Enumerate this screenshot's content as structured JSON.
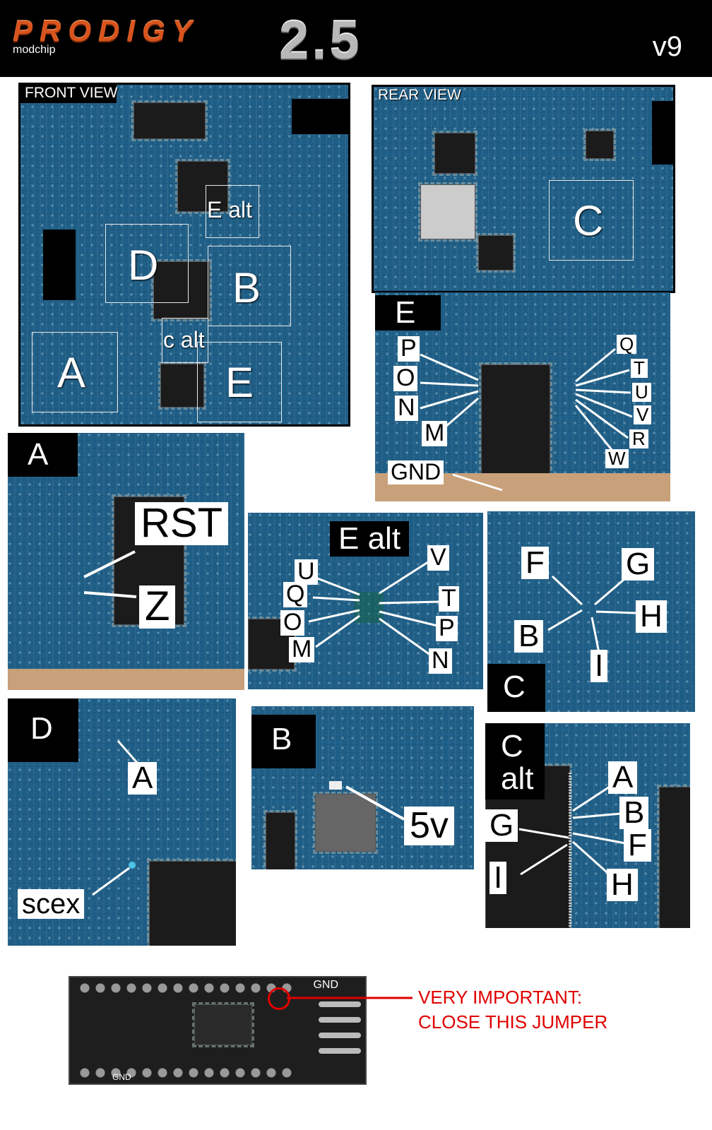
{
  "header": {
    "logo": "PRODIGY",
    "subtitle": "modchip",
    "version_big": "2.5",
    "version": "v9"
  },
  "front_view": {
    "title": "FRONT VIEW",
    "regions": [
      "E alt",
      "D",
      "B",
      "c alt",
      "A",
      "E"
    ]
  },
  "rear_view": {
    "title": "REAR VIEW",
    "regions": [
      "C"
    ]
  },
  "panel_E": {
    "tag": "E",
    "left_labels": [
      "P",
      "O",
      "N",
      "M"
    ],
    "right_labels": [
      "Q",
      "T",
      "U",
      "V",
      "R",
      "W"
    ],
    "ground": "GND"
  },
  "panel_A": {
    "tag": "A",
    "labels": [
      "RST",
      "Z"
    ]
  },
  "panel_E_alt": {
    "tag": "E alt",
    "left_labels": [
      "U",
      "Q",
      "O",
      "M"
    ],
    "right_labels": [
      "V",
      "T",
      "P",
      "N"
    ]
  },
  "panel_C": {
    "tag": "C",
    "labels": [
      "F",
      "G",
      "B",
      "H",
      "I"
    ]
  },
  "panel_D": {
    "tag": "D",
    "labels": [
      "A",
      "scex"
    ]
  },
  "panel_B": {
    "tag": "B",
    "labels": [
      "5v"
    ]
  },
  "panel_C_alt": {
    "tag_line1": "C",
    "tag_line2": "alt",
    "labels": [
      "A",
      "B",
      "G",
      "F",
      "I",
      "H"
    ]
  },
  "modchip_board": {
    "gnd_top": "GND",
    "gnd_bottom": "GND",
    "note_line1": "VERY IMPORTANT:",
    "note_line2": "CLOSE THIS JUMPER",
    "accent": "#e00000"
  }
}
